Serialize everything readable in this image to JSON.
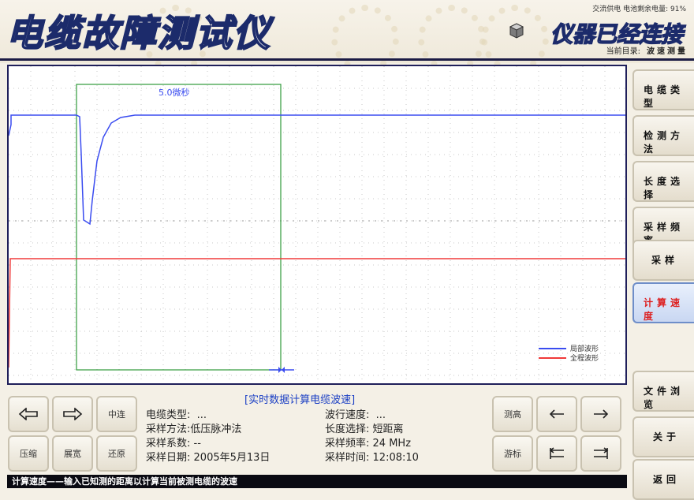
{
  "header": {
    "title": "电缆故障测试仪",
    "status_line": "交流供电  电池剩余电量: 91%",
    "connection": "仪器已经连接",
    "dir_label": "当前目录:",
    "dir_value": "波速测量"
  },
  "plot": {
    "cursor_label": "5.0微秒",
    "legend": [
      {
        "label": "局部波形",
        "color": "#3a4cf0"
      },
      {
        "label": "全程波形",
        "color": "#f03a3a"
      }
    ]
  },
  "sidebar": {
    "items": [
      {
        "label": "电缆类型"
      },
      {
        "label": "检测方法"
      },
      {
        "label": "长度选择"
      },
      {
        "label": "采样频率"
      },
      {
        "label": "采样"
      },
      {
        "label": "计算速度",
        "active": true
      },
      {
        "label": "文件浏览"
      },
      {
        "label": "关于"
      },
      {
        "label": "返回"
      }
    ]
  },
  "controls": {
    "left": [
      {
        "name": "left-arrow-button",
        "icon": "outline-left-arrow-icon"
      },
      {
        "name": "right-arrow-button",
        "icon": "outline-right-arrow-icon"
      },
      {
        "name": "center-button",
        "label": "中连"
      },
      {
        "name": "compress-button",
        "label": "压缩"
      },
      {
        "name": "expand-button",
        "label": "展宽"
      },
      {
        "name": "restore-button",
        "label": "还原"
      }
    ],
    "right": [
      {
        "name": "measure-button",
        "label": "测高"
      },
      {
        "name": "cursor-left-button",
        "icon": "arrow-left-icon"
      },
      {
        "name": "cursor-right-button",
        "icon": "arrow-right-icon"
      },
      {
        "name": "mark-button",
        "label": "游标"
      },
      {
        "name": "cursor-left-end-button",
        "icon": "arrow-left-bar-icon"
      },
      {
        "name": "cursor-right-end-button",
        "icon": "arrow-right-bar-icon"
      }
    ]
  },
  "info": {
    "panel_title": "[实时数据计算电缆波速]",
    "cable_type": {
      "label": "电缆类型:",
      "value": "..."
    },
    "method": {
      "label": "采样方法:",
      "value": "低压脉冲法"
    },
    "coef": {
      "label": "采样系数:",
      "value": "--"
    },
    "date": {
      "label": "采样日期:",
      "value": "2005年5月13日"
    },
    "speed": {
      "label": "波行速度:",
      "value": "..."
    },
    "length": {
      "label": "长度选择:",
      "value": "短距离"
    },
    "freq": {
      "label": "采样频率:",
      "value": "24 MHz"
    },
    "time": {
      "label": "采样时间:",
      "value": "12:08:10"
    }
  },
  "status_bar": "计算速度——输入已知测的距离以计算当前被测电缆的波速"
}
